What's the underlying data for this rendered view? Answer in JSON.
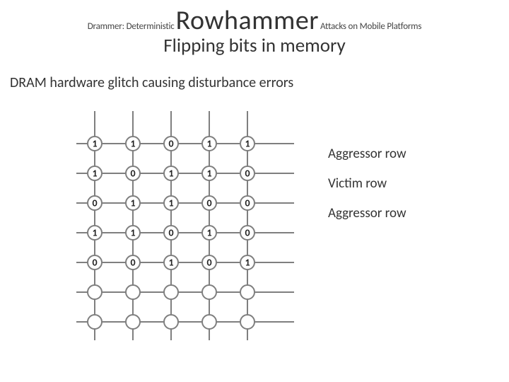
{
  "title": {
    "left_small": "Drammer: Deterministic",
    "big": "Rowhammer",
    "right_small": "Attacks on Mobile Platforms"
  },
  "subtitle": "Flipping bits in memory",
  "description": "DRAM hardware glitch causing disturbance errors",
  "row_labels": [
    "Aggressor row",
    "Victim row",
    "Aggressor row"
  ],
  "grid": {
    "type": "memory-grid",
    "cols": 5,
    "rows_with_bits": 5,
    "bottom_empty_rows": 2,
    "col_spacing": 54,
    "row_spacing": 42,
    "margin": 26,
    "top_stub": 20,
    "right_stub": 40,
    "node_radius": 10,
    "line_color": "#7f7f7f",
    "node_fill": "#ffffff",
    "text_color": "#222222",
    "bits": [
      [
        1,
        1,
        0,
        1,
        1
      ],
      [
        1,
        0,
        1,
        1,
        0
      ],
      [
        0,
        1,
        1,
        0,
        0
      ],
      [
        1,
        1,
        0,
        1,
        0
      ],
      [
        0,
        0,
        1,
        0,
        1
      ]
    ]
  }
}
